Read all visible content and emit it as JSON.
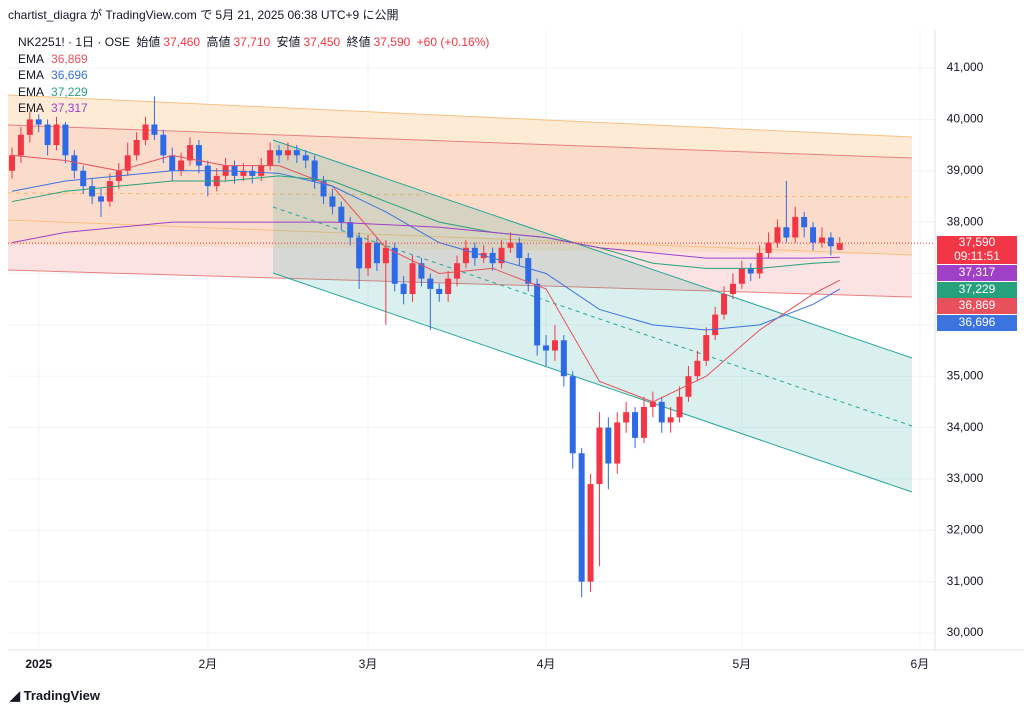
{
  "header": "chartist_diagra が TradingView.com で 5月 21, 2025 06:38 UTC+9 に公開",
  "footer": "TradingView",
  "chart_data": {
    "type": "candlestick",
    "symbol": "NK2251! · 1日 · OSE",
    "ohlc_legend": [
      {
        "label": "始値",
        "value": "37,460"
      },
      {
        "label": "高値",
        "value": "37,710"
      },
      {
        "label": "安値",
        "value": "37,450"
      },
      {
        "label": "終値",
        "value": "37,590"
      }
    ],
    "change": "+60 (+0.16%)",
    "countdown": "09:11:51",
    "up_color": "#f23645",
    "down_color": "#2f6ae6",
    "xlim": [
      -0.45,
      103.7
    ],
    "xticks": [
      {
        "value": 3,
        "label": "2025"
      },
      {
        "value": 22,
        "label": "2月"
      },
      {
        "value": 40,
        "label": "3月"
      },
      {
        "value": 60,
        "label": "4月"
      },
      {
        "value": 82,
        "label": "5月"
      },
      {
        "value": 102,
        "label": "6月"
      }
    ],
    "ylim": [
      29670,
      41740
    ],
    "yticks": [
      {
        "value": 30000,
        "label": "30,000"
      },
      {
        "value": 31000,
        "label": "31,000"
      },
      {
        "value": 32000,
        "label": "32,000"
      },
      {
        "value": 33000,
        "label": "33,000"
      },
      {
        "value": 34000,
        "label": "34,000"
      },
      {
        "value": 35000,
        "label": "35,000"
      },
      {
        "value": 36000,
        "label": "36,000"
      },
      {
        "value": 37000,
        "label": "37,000"
      },
      {
        "value": 38000,
        "label": "38,000"
      },
      {
        "value": 39000,
        "label": "39,000"
      },
      {
        "value": 40000,
        "label": "40,000"
      },
      {
        "value": 41000,
        "label": "41,000"
      }
    ],
    "grid": true,
    "x": [
      0,
      1,
      2,
      3,
      4,
      5,
      6,
      7,
      8,
      9,
      10,
      11,
      12,
      13,
      14,
      15,
      16,
      17,
      18,
      19,
      20,
      21,
      22,
      23,
      24,
      25,
      26,
      27,
      28,
      29,
      30,
      31,
      32,
      33,
      34,
      35,
      36,
      37,
      38,
      39,
      40,
      41,
      42,
      43,
      44,
      45,
      46,
      47,
      48,
      49,
      50,
      51,
      52,
      53,
      54,
      55,
      56,
      57,
      58,
      59,
      60,
      61,
      62,
      63,
      64,
      65,
      66,
      67,
      68,
      69,
      70,
      71,
      72,
      73,
      74,
      75,
      76,
      77,
      78,
      79,
      80,
      81,
      82,
      83,
      84,
      85,
      86,
      87,
      88,
      89,
      90,
      91,
      92,
      93
    ],
    "ohlc": [
      [
        39000,
        39450,
        38850,
        39300
      ],
      [
        39300,
        39850,
        39150,
        39700
      ],
      [
        39700,
        40150,
        39550,
        40000
      ],
      [
        40000,
        40100,
        39750,
        39900
      ],
      [
        39900,
        40000,
        39300,
        39500
      ],
      [
        39500,
        40050,
        39400,
        39900
      ],
      [
        39900,
        39950,
        39150,
        39300
      ],
      [
        39300,
        39400,
        38850,
        39000
      ],
      [
        39000,
        39100,
        38550,
        38700
      ],
      [
        38700,
        38850,
        38350,
        38500
      ],
      [
        38500,
        38650,
        38100,
        38400
      ],
      [
        38400,
        38950,
        38300,
        38800
      ],
      [
        38800,
        39150,
        38650,
        39000
      ],
      [
        39000,
        39550,
        38900,
        39300
      ],
      [
        39300,
        39750,
        39200,
        39600
      ],
      [
        39600,
        40050,
        39500,
        39900
      ],
      [
        39900,
        40450,
        39600,
        39700
      ],
      [
        39700,
        39800,
        39150,
        39300
      ],
      [
        39300,
        39450,
        38800,
        39000
      ],
      [
        39000,
        39350,
        38900,
        39200
      ],
      [
        39200,
        39650,
        39100,
        39500
      ],
      [
        39500,
        39600,
        38950,
        39100
      ],
      [
        39100,
        39200,
        38500,
        38700
      ],
      [
        38700,
        39050,
        38600,
        38900
      ],
      [
        38900,
        39250,
        38800,
        39100
      ],
      [
        39100,
        39200,
        38750,
        38900
      ],
      [
        38900,
        39150,
        38800,
        39000
      ],
      [
        39000,
        39100,
        38750,
        38900
      ],
      [
        38900,
        39250,
        38800,
        39100
      ],
      [
        39100,
        39550,
        39000,
        39400
      ],
      [
        39400,
        39500,
        39150,
        39300
      ],
      [
        39300,
        39550,
        39200,
        39400
      ],
      [
        39400,
        39500,
        39150,
        39300
      ],
      [
        39300,
        39400,
        39050,
        39200
      ],
      [
        39200,
        39300,
        38650,
        38800
      ],
      [
        38800,
        38900,
        38350,
        38500
      ],
      [
        38500,
        38650,
        38150,
        38300
      ],
      [
        38300,
        38400,
        37850,
        38000
      ],
      [
        38000,
        38100,
        37550,
        37700
      ],
      [
        37700,
        37800,
        36700,
        37100
      ],
      [
        37100,
        37750,
        36950,
        37600
      ],
      [
        37600,
        37700,
        37050,
        37200
      ],
      [
        37200,
        37650,
        36000,
        37500
      ],
      [
        37500,
        37600,
        36650,
        36800
      ],
      [
        36800,
        36950,
        36400,
        36600
      ],
      [
        36600,
        37350,
        36450,
        37200
      ],
      [
        37200,
        37300,
        36750,
        36900
      ],
      [
        36900,
        37000,
        35900,
        36700
      ],
      [
        36700,
        36800,
        36450,
        36600
      ],
      [
        36600,
        37050,
        36450,
        36900
      ],
      [
        36900,
        37350,
        36750,
        37200
      ],
      [
        37200,
        37650,
        37100,
        37500
      ],
      [
        37500,
        37600,
        37150,
        37300
      ],
      [
        37300,
        37550,
        37200,
        37400
      ],
      [
        37400,
        37500,
        37050,
        37200
      ],
      [
        37200,
        37650,
        37100,
        37500
      ],
      [
        37500,
        37800,
        37400,
        37600
      ],
      [
        37600,
        37700,
        37150,
        37300
      ],
      [
        37300,
        37400,
        36650,
        36800
      ],
      [
        36800,
        36900,
        35400,
        35600
      ],
      [
        35600,
        35800,
        35200,
        35500
      ],
      [
        35500,
        36000,
        35300,
        35700
      ],
      [
        35700,
        35800,
        34800,
        35000
      ],
      [
        35000,
        35100,
        33200,
        33500
      ],
      [
        33500,
        33600,
        30700,
        31000
      ],
      [
        31000,
        33100,
        30800,
        32900
      ],
      [
        32900,
        34300,
        31300,
        34000
      ],
      [
        34000,
        34200,
        32800,
        33300
      ],
      [
        33300,
        34300,
        33100,
        34100
      ],
      [
        34100,
        34500,
        33900,
        34300
      ],
      [
        34300,
        34400,
        33600,
        33800
      ],
      [
        33800,
        34600,
        33700,
        34400
      ],
      [
        34400,
        34700,
        34200,
        34500
      ],
      [
        34500,
        34600,
        33900,
        34100
      ],
      [
        34100,
        34400,
        33900,
        34200
      ],
      [
        34200,
        34800,
        34100,
        34600
      ],
      [
        34600,
        35200,
        34500,
        35000
      ],
      [
        35000,
        35500,
        34900,
        35300
      ],
      [
        35300,
        35950,
        35200,
        35800
      ],
      [
        35800,
        36350,
        35700,
        36200
      ],
      [
        36200,
        36750,
        36100,
        36600
      ],
      [
        36600,
        37000,
        36500,
        36800
      ],
      [
        36800,
        37250,
        36700,
        37100
      ],
      [
        37100,
        37200,
        36850,
        37000
      ],
      [
        37000,
        37550,
        36900,
        37400
      ],
      [
        37400,
        37800,
        37300,
        37600
      ],
      [
        37600,
        38050,
        37500,
        37900
      ],
      [
        37900,
        38800,
        37600,
        37700
      ],
      [
        37700,
        38300,
        37600,
        38100
      ],
      [
        38100,
        38200,
        37700,
        37900
      ],
      [
        37900,
        38000,
        37450,
        37600
      ],
      [
        37600,
        37900,
        37500,
        37700
      ],
      [
        37700,
        37800,
        37350,
        37530
      ],
      [
        37460,
        37710,
        37450,
        37590
      ]
    ],
    "ema_x": [
      0,
      6,
      12,
      18,
      24,
      30,
      36,
      42,
      48,
      54,
      60,
      66,
      72,
      78,
      84,
      90,
      93
    ],
    "ema": [
      {
        "name": "EMA",
        "color": "#e8505b",
        "last_label": "36,869",
        "values": [
          39300,
          39200,
          39000,
          39300,
          39100,
          39100,
          38700,
          37500,
          37000,
          37100,
          36700,
          34900,
          34500,
          35000,
          35900,
          36600,
          36869
        ]
      },
      {
        "name": "EMA",
        "color": "#3b73e0",
        "last_label": "36,696",
        "values": [
          38600,
          38800,
          38900,
          39000,
          39000,
          38950,
          38700,
          38200,
          37600,
          37300,
          37000,
          36300,
          36000,
          35900,
          36000,
          36400,
          36696
        ]
      },
      {
        "name": "EMA",
        "color": "#26a17b",
        "last_label": "37,229",
        "values": [
          38400,
          38600,
          38700,
          38800,
          38800,
          38900,
          38800,
          38400,
          38000,
          37800,
          37700,
          37500,
          37200,
          37100,
          37100,
          37200,
          37229
        ]
      },
      {
        "name": "EMA",
        "color": "#a040c8",
        "last_label": "37,317",
        "values": [
          37600,
          37800,
          37900,
          38000,
          38000,
          38000,
          38000,
          37950,
          37900,
          37800,
          37700,
          37500,
          37400,
          37300,
          37300,
          37300,
          37317
        ]
      }
    ]
  }
}
